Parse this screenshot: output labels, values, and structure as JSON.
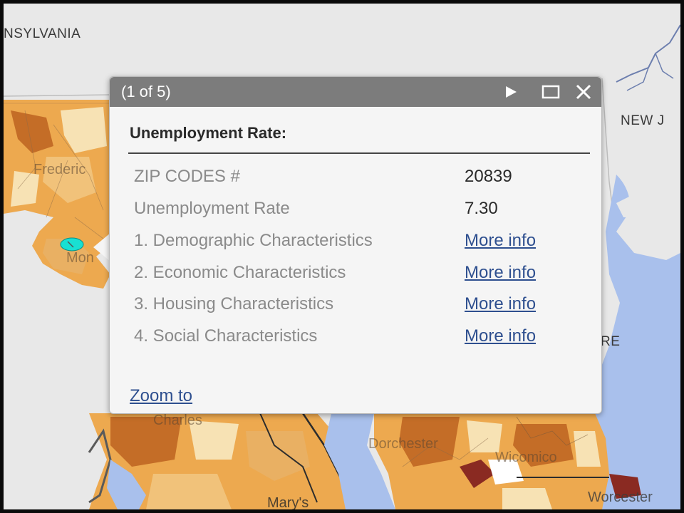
{
  "map": {
    "labels": {
      "pennsylvania": "NSYLVANIA",
      "new_jersey": "NEW J",
      "delaware": "RE",
      "frederick": "Frederic",
      "montgomery": "Mon",
      "charles": "Charles",
      "dorchester": "Dorchester",
      "wicomico": "Wicomico",
      "worcester": "Worcester",
      "st_marys": "Mary's"
    },
    "colors": {
      "background": "#e8e8e8",
      "water": "#a9c0ec",
      "light": "#f7e2b4",
      "mid": "#eda94f",
      "dark": "#c46d27",
      "darkest": "#8a2a22",
      "highlight": "#19e0d2"
    }
  },
  "popup": {
    "count": "(1 of 5)",
    "title": "Unemployment Rate:",
    "rows": [
      {
        "label": "ZIP CODES #",
        "value": "20839"
      },
      {
        "label": "Unemployment Rate",
        "value": "7.30"
      }
    ],
    "links": [
      {
        "label": "1. Demographic Characteristics",
        "link": "More info"
      },
      {
        "label": "2. Economic Characteristics",
        "link": "More info"
      },
      {
        "label": "3. Housing Characteristics",
        "link": "More info"
      },
      {
        "label": "4. Social Characteristics",
        "link": "More info"
      }
    ],
    "zoom": "Zoom to",
    "icons": {
      "next": "play-next-icon",
      "maximize": "maximize-icon",
      "close": "close-icon"
    }
  }
}
